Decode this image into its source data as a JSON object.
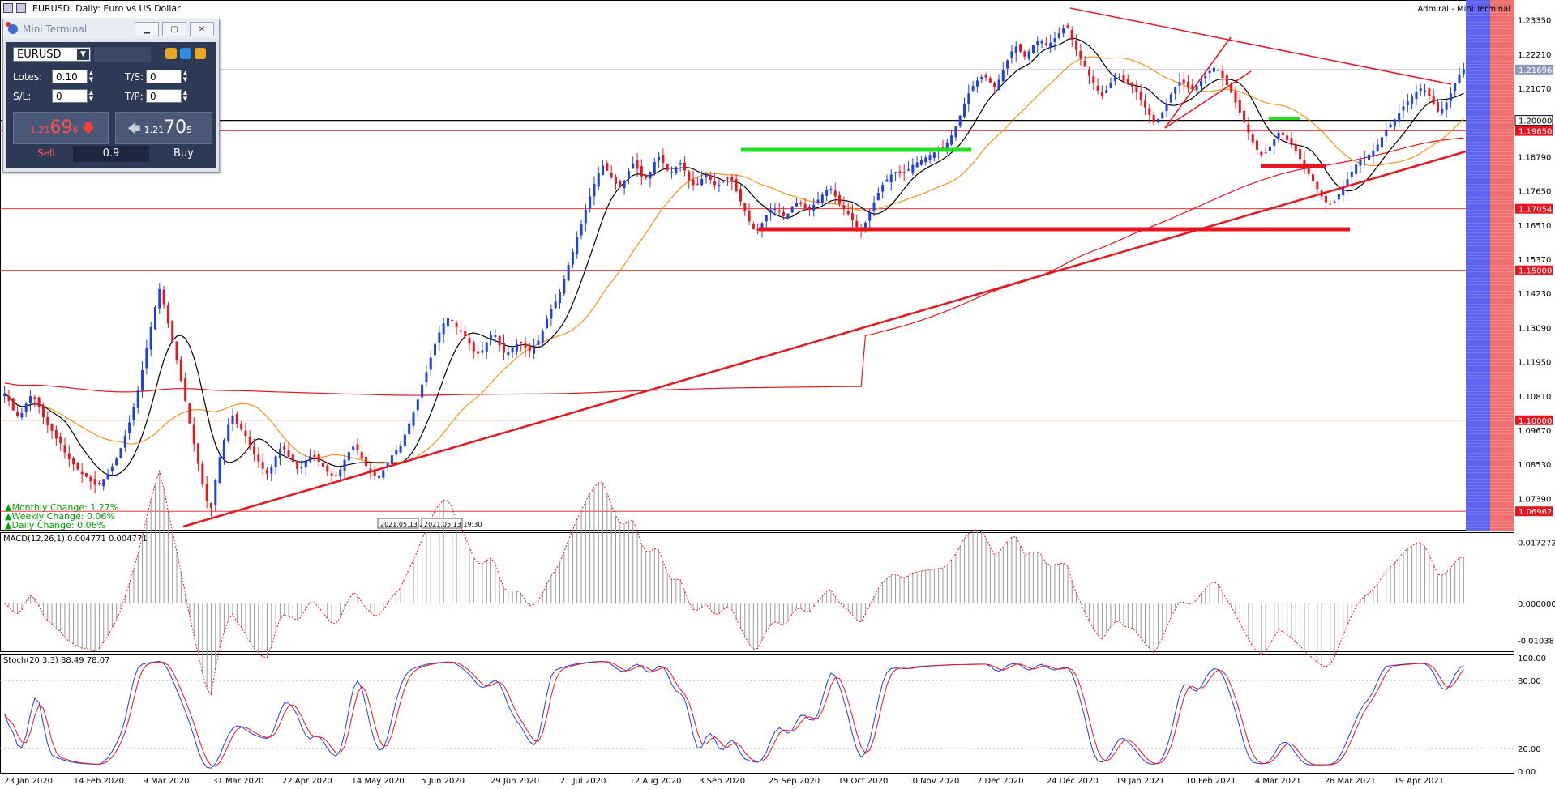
{
  "window": {
    "title": "EURUSD, Daily:  Euro vs US Dollar",
    "corner_label": "Admiral - Mini Terminal"
  },
  "mini_terminal": {
    "title": "Mini Terminal",
    "symbol": "EURUSD",
    "lots_label": "Lotes:",
    "lots_value": "0.10",
    "ts_label": "T/S:",
    "ts_value": "0",
    "sl_label": "S/L:",
    "sl_value": "0",
    "tp_label": "T/P:",
    "tp_value": "0",
    "sell_price_prefix": "1.21",
    "sell_price_big": "69",
    "sell_price_small": "6",
    "buy_price_prefix": "1.21",
    "buy_price_big": "70",
    "buy_price_small": "5",
    "sell_label": "Sell",
    "buy_label": "Buy",
    "volume": "0.9"
  },
  "changes": {
    "monthly": "▲Monthly Change: 1.27%",
    "weekly": "▲Weekly Change: 0.06%",
    "daily": "▲Daily Change: 0.06%"
  },
  "time_tags": [
    "2021.05.13 22:30",
    "2021.05.13 19:30"
  ],
  "colors": {
    "bull": "#1f3fe0",
    "bear": "#e8141e",
    "sma_fast": "#000000",
    "sma_mid": "#f2941a",
    "sma_slow": "#e8141e",
    "trend": "#e8141e",
    "support_green": "#22e022"
  },
  "chart_data": [
    {
      "type": "candlestick",
      "symbol": "EURUSD",
      "timeframe": "Daily",
      "x_labels": [
        "23 Jan 2020",
        "14 Feb 2020",
        "9 Mar 2020",
        "31 Mar 2020",
        "22 Apr 2020",
        "14 May 2020",
        "5 Jun 2020",
        "29 Jun 2020",
        "21 Jul 2020",
        "12 Aug 2020",
        "3 Sep 2020",
        "25 Sep 2020",
        "19 Oct 2020",
        "10 Nov 2020",
        "2 Dec 2020",
        "24 Dec 2020",
        "19 Jan 2021",
        "10 Feb 2021",
        "4 Mar 2021",
        "26 Mar 2021",
        "19 Apr 2021"
      ],
      "y_ticks": [
        "1.23350",
        "1.22210",
        "1.21070",
        "1.19930",
        "1.18790",
        "1.17650",
        "1.16510",
        "1.15370",
        "1.14230",
        "1.13090",
        "1.11950",
        "1.10810",
        "1.09670",
        "1.08530",
        "1.07390"
      ],
      "ylim": [
        1.064,
        1.238
      ],
      "price_tags": [
        {
          "label": "1.21696",
          "value": 1.21696,
          "style": "current"
        },
        {
          "label": "1.20000",
          "value": 1.2,
          "style": "dark"
        },
        {
          "label": "1.19650",
          "value": 1.1965,
          "style": "red"
        },
        {
          "label": "1.17054",
          "value": 1.17054,
          "style": "red"
        },
        {
          "label": "1.15000",
          "value": 1.15,
          "style": "red"
        },
        {
          "label": "1.10000",
          "value": 1.1,
          "style": "red"
        },
        {
          "label": "1.06962",
          "value": 1.06962,
          "style": "red"
        }
      ],
      "close_path": [
        1.109,
        1.106,
        1.102,
        1.101,
        1.105,
        1.108,
        1.107,
        1.103,
        1.099,
        1.097,
        1.094,
        1.092,
        1.088,
        1.086,
        1.084,
        1.082,
        1.081,
        1.079,
        1.078,
        1.08,
        1.082,
        1.085,
        1.088,
        1.093,
        1.098,
        1.104,
        1.111,
        1.119,
        1.128,
        1.136,
        1.144,
        1.138,
        1.13,
        1.123,
        1.115,
        1.107,
        1.098,
        1.09,
        1.082,
        1.074,
        1.07,
        1.081,
        1.09,
        1.096,
        1.102,
        1.099,
        1.097,
        1.094,
        1.09,
        1.087,
        1.084,
        1.082,
        1.085,
        1.09,
        1.091,
        1.088,
        1.086,
        1.083,
        1.085,
        1.088,
        1.088,
        1.086,
        1.084,
        1.082,
        1.081,
        1.083,
        1.087,
        1.09,
        1.092,
        1.088,
        1.085,
        1.083,
        1.081,
        1.082,
        1.085,
        1.088,
        1.09,
        1.092,
        1.097,
        1.101,
        1.106,
        1.112,
        1.117,
        1.123,
        1.128,
        1.132,
        1.134,
        1.133,
        1.13,
        1.129,
        1.126,
        1.123,
        1.122,
        1.124,
        1.128,
        1.129,
        1.125,
        1.122,
        1.123,
        1.125,
        1.126,
        1.124,
        1.123,
        1.125,
        1.128,
        1.133,
        1.137,
        1.14,
        1.144,
        1.15,
        1.155,
        1.161,
        1.166,
        1.172,
        1.177,
        1.182,
        1.185,
        1.183,
        1.18,
        1.178,
        1.179,
        1.183,
        1.186,
        1.183,
        1.18,
        1.182,
        1.186,
        1.188,
        1.185,
        1.182,
        1.184,
        1.186,
        1.183,
        1.179,
        1.178,
        1.18,
        1.182,
        1.18,
        1.178,
        1.179,
        1.181,
        1.18,
        1.176,
        1.172,
        1.168,
        1.164,
        1.163,
        1.166,
        1.169,
        1.171,
        1.17,
        1.168,
        1.169,
        1.172,
        1.173,
        1.171,
        1.17,
        1.172,
        1.174,
        1.176,
        1.178,
        1.175,
        1.172,
        1.17,
        1.168,
        1.165,
        1.163,
        1.166,
        1.17,
        1.174,
        1.178,
        1.18,
        1.182,
        1.183,
        1.182,
        1.183,
        1.185,
        1.186,
        1.187,
        1.188,
        1.189,
        1.19,
        1.191,
        1.193,
        1.196,
        1.2,
        1.205,
        1.209,
        1.212,
        1.214,
        1.215,
        1.213,
        1.211,
        1.214,
        1.218,
        1.222,
        1.225,
        1.223,
        1.221,
        1.224,
        1.226,
        1.227,
        1.225,
        1.226,
        1.228,
        1.23,
        1.232,
        1.227,
        1.223,
        1.22,
        1.216,
        1.213,
        1.21,
        1.208,
        1.211,
        1.214,
        1.215,
        1.213,
        1.212,
        1.211,
        1.208,
        1.205,
        1.202,
        1.199,
        1.201,
        1.204,
        1.208,
        1.211,
        1.213,
        1.212,
        1.21,
        1.211,
        1.213,
        1.215,
        1.217,
        1.218,
        1.215,
        1.212,
        1.209,
        1.205,
        1.201,
        1.197,
        1.193,
        1.19,
        1.188,
        1.19,
        1.193,
        1.196,
        1.195,
        1.193,
        1.191,
        1.188,
        1.185,
        1.182,
        1.179,
        1.176,
        1.173,
        1.172,
        1.173,
        1.176,
        1.179,
        1.182,
        1.185,
        1.187,
        1.188,
        1.189,
        1.191,
        1.194,
        1.197,
        1.199,
        1.201,
        1.204,
        1.206,
        1.208,
        1.21,
        1.211,
        1.209,
        1.206,
        1.203,
        1.204,
        1.207,
        1.211,
        1.215,
        1.217
      ],
      "candles_count": 340
    },
    {
      "type": "macd",
      "label": "MACD(12,26,1) 0.004771 0.004771",
      "y_ticks": [
        "0.017272",
        "0.000000",
        "-0.010383"
      ],
      "ylim": [
        -0.013,
        0.019
      ]
    },
    {
      "type": "stochastic",
      "label": "Stoch(20,3,3) 88.49 78.07",
      "y_ticks": [
        "100.00",
        "80.00",
        "20.00",
        "0.00"
      ],
      "ylim": [
        0,
        100
      ]
    }
  ]
}
